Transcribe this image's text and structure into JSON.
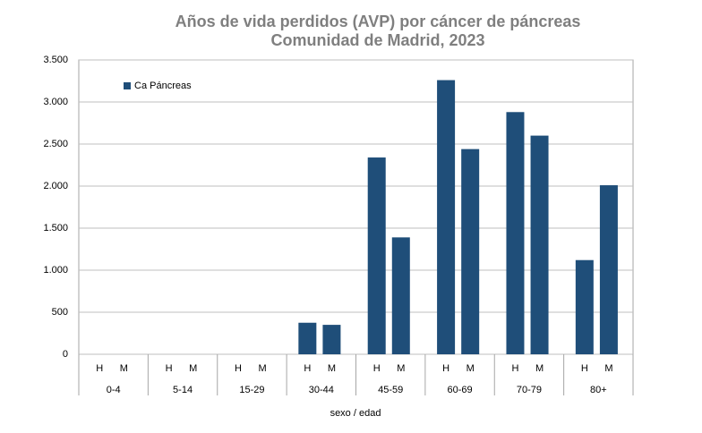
{
  "chart_data": {
    "type": "bar",
    "title": "Años de vida perdidos (AVP) por cáncer de páncreas",
    "subtitle": "Comunidad de Madrid, 2023",
    "x_label": "sexo / edad",
    "groups": [
      "0-4",
      "5-14",
      "15-29",
      "30-44",
      "45-59",
      "60-69",
      "70-79",
      "80+"
    ],
    "categories": [
      "H",
      "M",
      "H",
      "M",
      "H",
      "M",
      "H",
      "M",
      "H",
      "M",
      "H",
      "M",
      "H",
      "M",
      "H",
      "M"
    ],
    "series": [
      {
        "name": "Ca Páncreas",
        "color": "#1f4e79",
        "values": [
          0,
          0,
          0,
          0,
          0,
          0,
          375,
          350,
          2340,
          1390,
          3260,
          2440,
          2880,
          2600,
          1120,
          2010
        ]
      }
    ],
    "ylim": [
      0,
      3500
    ],
    "yticks": [
      0,
      500,
      {
        "value": 1000,
        "label": "1.000"
      },
      {
        "value": 1500,
        "label": "1.500"
      },
      {
        "value": 2000,
        "label": "2.000"
      },
      {
        "value": 2500,
        "label": "2.500"
      },
      {
        "value": 3000,
        "label": "3.000"
      },
      {
        "value": 3500,
        "label": "3.500"
      }
    ],
    "grid": true,
    "legend": "top-left"
  }
}
